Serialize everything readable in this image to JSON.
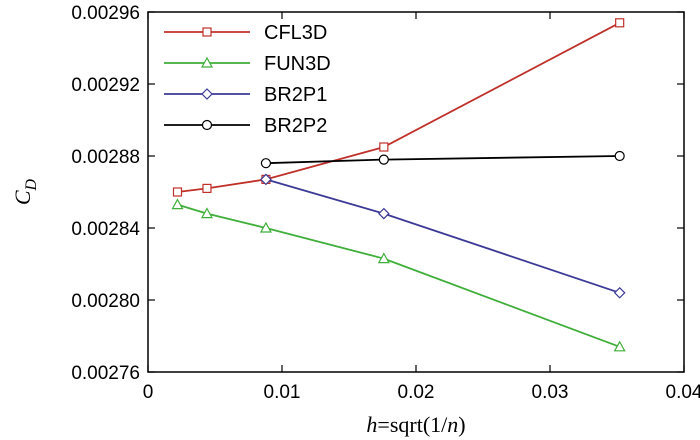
{
  "chart_data": {
    "type": "line",
    "xlabel_prefix": "h",
    "xlabel_mid": "=sqrt(1/",
    "xlabel_var": "n",
    "xlabel_suffix": ")",
    "ylabel_main": "C",
    "ylabel_sub": "D",
    "xlim": [
      0,
      0.04
    ],
    "ylim": [
      0.00276,
      0.00296
    ],
    "xticks": [
      0,
      0.01,
      0.02,
      0.03,
      0.04
    ],
    "xtick_labels": [
      "0",
      "0.01",
      "0.02",
      "0.03",
      "0.04"
    ],
    "yticks": [
      0.00276,
      0.0028,
      0.00284,
      0.00288,
      0.00292,
      0.00296
    ],
    "ytick_labels": [
      "0.00276",
      "0.00280",
      "0.00284",
      "0.00288",
      "0.00292",
      "0.00296"
    ],
    "grid": false,
    "legend_position": "top-left",
    "series": [
      {
        "name": "CFL3D",
        "color": "#c0302a",
        "marker": "square",
        "x": [
          0.0022,
          0.0044,
          0.0088,
          0.0176,
          0.0352
        ],
        "y": [
          0.00286,
          0.002862,
          0.002867,
          0.002885,
          0.002954
        ]
      },
      {
        "name": "FUN3D",
        "color": "#3fae3a",
        "marker": "triangle",
        "x": [
          0.0022,
          0.0044,
          0.0088,
          0.0176,
          0.0352
        ],
        "y": [
          0.002853,
          0.002848,
          0.00284,
          0.002823,
          0.002774
        ]
      },
      {
        "name": "BR2P1",
        "color": "#3c3a96",
        "marker": "diamond",
        "x": [
          0.0088,
          0.0176,
          0.0352
        ],
        "y": [
          0.002867,
          0.002848,
          0.002804
        ]
      },
      {
        "name": "BR2P2",
        "color": "#000000",
        "marker": "circle",
        "x": [
          0.0088,
          0.0176,
          0.0352
        ],
        "y": [
          0.002876,
          0.002878,
          0.00288
        ]
      }
    ]
  }
}
